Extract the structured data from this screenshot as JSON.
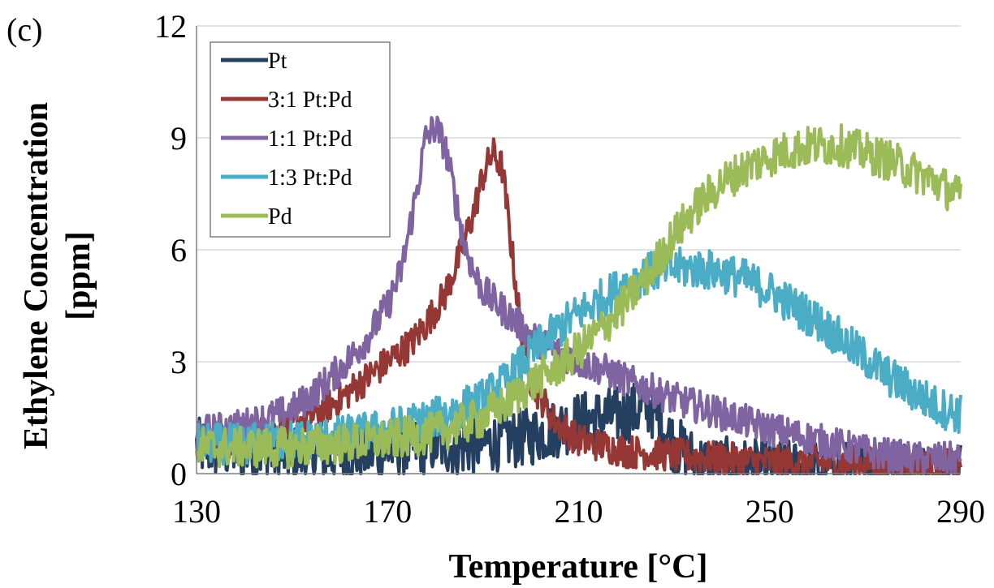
{
  "panel_label": "(c)",
  "chart_data": {
    "type": "line",
    "xlabel": "Temperature [°C]",
    "ylabel_lines": [
      "Ethylene Concentration",
      "[ppm]"
    ],
    "xlim": [
      130,
      290
    ],
    "ylim": [
      0,
      12
    ],
    "xticks": [
      130,
      170,
      210,
      250,
      290
    ],
    "yticks": [
      0,
      3,
      6,
      9,
      12
    ],
    "grid": "horizontal",
    "legend_position": "top-left",
    "series": [
      {
        "name": "Pt",
        "color": "#243f60",
        "x": [
          130,
          140,
          150,
          160,
          170,
          175,
          180,
          185,
          190,
          195,
          200,
          205,
          210,
          215,
          220,
          225,
          230,
          235,
          240,
          250,
          260,
          270,
          280,
          290
        ],
        "y": [
          0.7,
          0.6,
          0.5,
          0.5,
          0.6,
          0.7,
          0.8,
          0.7,
          0.8,
          0.9,
          1.0,
          1.2,
          1.4,
          1.5,
          1.6,
          1.8,
          0.8,
          0.3,
          0.2,
          0.1,
          0.1,
          0.1,
          0.1,
          0.1
        ],
        "noise": 0.8
      },
      {
        "name": "3:1 Pt:Pd",
        "color": "#953735",
        "x": [
          130,
          140,
          150,
          155,
          160,
          165,
          170,
          175,
          178,
          182,
          185,
          188,
          190,
          192,
          194,
          196,
          198,
          200,
          205,
          210,
          220,
          230,
          240,
          250,
          260,
          270,
          280,
          290
        ],
        "y": [
          0.8,
          1.0,
          1.3,
          1.6,
          2.0,
          2.5,
          3.0,
          3.5,
          4.0,
          4.8,
          5.8,
          7.0,
          8.0,
          8.6,
          8.2,
          6.0,
          3.8,
          2.5,
          1.4,
          0.9,
          0.6,
          0.5,
          0.4,
          0.3,
          0.3,
          0.3,
          0.2,
          0.2
        ],
        "noise": 0.45
      },
      {
        "name": "1:1 Pt:Pd",
        "color": "#8064a2",
        "x": [
          130,
          140,
          150,
          155,
          160,
          165,
          170,
          173,
          176,
          178,
          180,
          182,
          184,
          186,
          188,
          190,
          195,
          200,
          205,
          210,
          215,
          220,
          230,
          240,
          250,
          260,
          270,
          280,
          290
        ],
        "y": [
          1.1,
          1.3,
          1.7,
          2.2,
          2.8,
          3.5,
          4.5,
          5.5,
          7.5,
          9.0,
          9.3,
          8.8,
          7.5,
          6.2,
          5.4,
          4.9,
          4.3,
          3.7,
          3.3,
          3.0,
          2.8,
          2.5,
          2.0,
          1.6,
          1.2,
          0.9,
          0.6,
          0.4,
          0.4
        ],
        "noise": 0.45
      },
      {
        "name": "1:3 Pt:Pd",
        "color": "#4bacc6",
        "x": [
          130,
          140,
          150,
          160,
          170,
          180,
          190,
          195,
          200,
          205,
          210,
          215,
          220,
          225,
          230,
          235,
          240,
          245,
          250,
          255,
          260,
          265,
          270,
          275,
          280,
          285,
          290
        ],
        "y": [
          0.8,
          0.8,
          0.9,
          1.0,
          1.2,
          1.5,
          2.0,
          2.5,
          3.2,
          3.8,
          4.3,
          4.7,
          5.1,
          5.4,
          5.5,
          5.5,
          5.4,
          5.2,
          4.9,
          4.5,
          4.1,
          3.6,
          3.1,
          2.6,
          2.2,
          1.8,
          1.6
        ],
        "noise": 0.55
      },
      {
        "name": "Pd",
        "color": "#9bbb59",
        "x": [
          130,
          140,
          150,
          160,
          170,
          180,
          190,
          195,
          200,
          205,
          210,
          215,
          220,
          225,
          230,
          235,
          240,
          245,
          250,
          255,
          260,
          265,
          270,
          275,
          280,
          285,
          290
        ],
        "y": [
          0.7,
          0.7,
          0.7,
          0.8,
          0.9,
          1.1,
          1.5,
          1.9,
          2.4,
          2.8,
          3.3,
          3.9,
          4.6,
          5.4,
          6.4,
          7.2,
          7.8,
          8.2,
          8.5,
          8.7,
          8.8,
          8.8,
          8.6,
          8.4,
          8.1,
          7.8,
          7.4
        ],
        "noise": 0.55
      }
    ]
  }
}
